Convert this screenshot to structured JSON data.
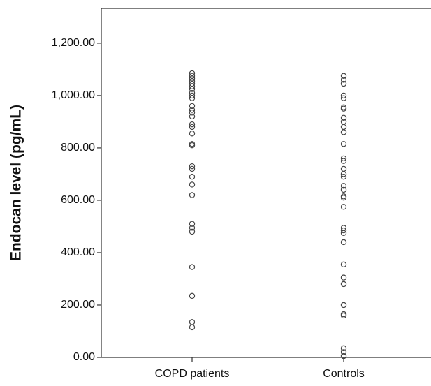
{
  "chart_data": {
    "type": "strip",
    "y_label": "Endocan level (pg/mL)",
    "categories": [
      "COPD patients",
      "Controls"
    ],
    "values": [
      [
        1085,
        1075,
        1065,
        1055,
        1045,
        1035,
        1025,
        1010,
        1000,
        990,
        960,
        945,
        935,
        920,
        890,
        880,
        855,
        815,
        810,
        730,
        720,
        690,
        660,
        620,
        510,
        495,
        480,
        345,
        235,
        135,
        115
      ],
      [
        1075,
        1060,
        1045,
        1000,
        990,
        955,
        950,
        915,
        900,
        880,
        860,
        815,
        760,
        750,
        720,
        700,
        690,
        655,
        640,
        615,
        610,
        575,
        495,
        485,
        475,
        440,
        355,
        305,
        280,
        200,
        165,
        160,
        35,
        20,
        5
      ]
    ],
    "color": "#444444",
    "ylim": [
      0,
      1333
    ],
    "yticks": [
      {
        "value": 0,
        "label": "0.00"
      },
      {
        "value": 200,
        "label": "200.00"
      },
      {
        "value": 400,
        "label": "400.00"
      },
      {
        "value": 600,
        "label": "600.00"
      },
      {
        "value": 800,
        "label": "800.00"
      },
      {
        "value": 1000,
        "label": "1,000.00"
      },
      {
        "value": 1200,
        "label": "1,200.00"
      }
    ]
  }
}
